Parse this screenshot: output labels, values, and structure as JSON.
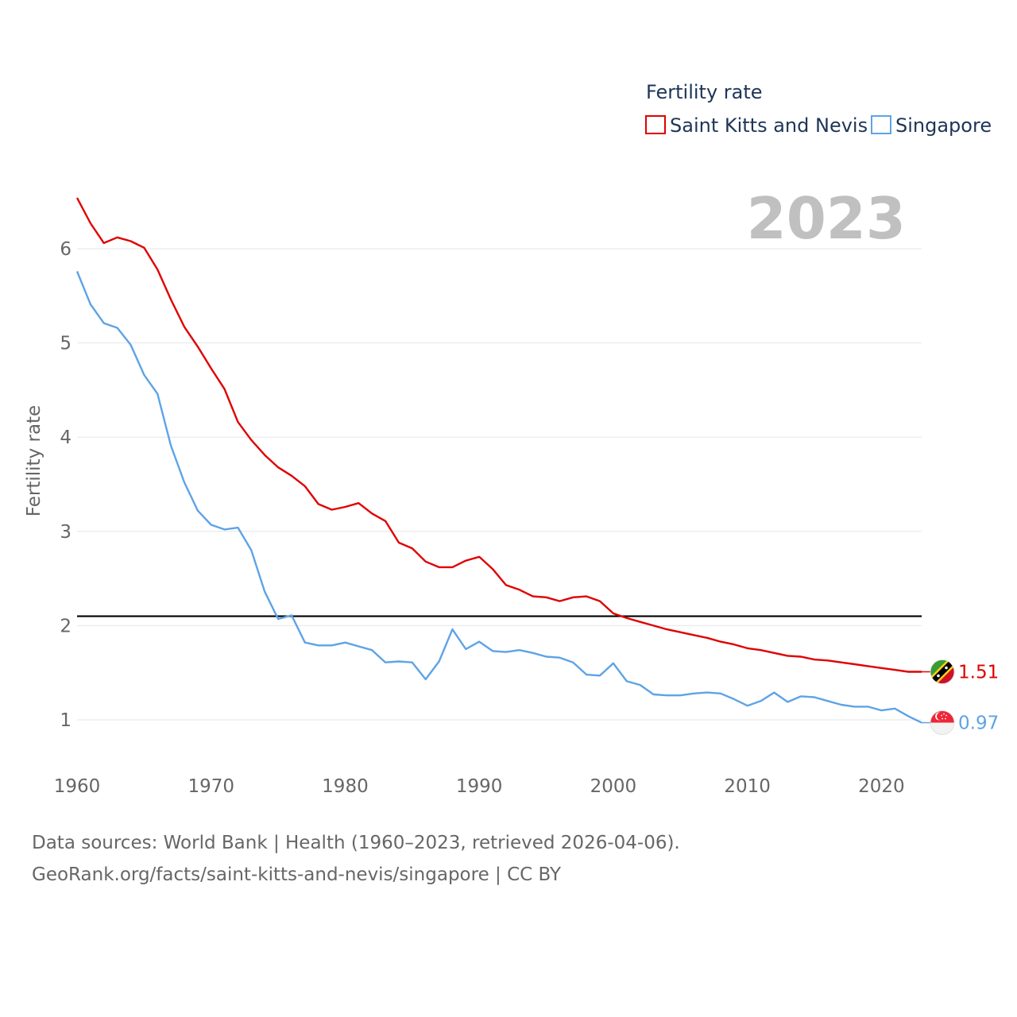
{
  "chart_data": {
    "type": "line",
    "ylabel": "Fertility rate",
    "legend_title": "Fertility rate",
    "year_label": "2023",
    "xlim": [
      1960,
      2023
    ],
    "ylim": [
      1,
      6
    ],
    "x_ticks": [
      1960,
      1970,
      1980,
      1990,
      2000,
      2010,
      2020
    ],
    "y_ticks": [
      1,
      2,
      3,
      4,
      5,
      6
    ],
    "grid": true,
    "legend_position": "top-right",
    "reference_line": {
      "value": 2.1,
      "color": "#000000"
    },
    "x": [
      1960,
      1961,
      1962,
      1963,
      1964,
      1965,
      1966,
      1967,
      1968,
      1969,
      1970,
      1971,
      1972,
      1973,
      1974,
      1975,
      1976,
      1977,
      1978,
      1979,
      1980,
      1981,
      1982,
      1983,
      1984,
      1985,
      1986,
      1987,
      1988,
      1989,
      1990,
      1991,
      1992,
      1993,
      1994,
      1995,
      1996,
      1997,
      1998,
      1999,
      2000,
      2001,
      2002,
      2003,
      2004,
      2005,
      2006,
      2007,
      2008,
      2009,
      2010,
      2011,
      2012,
      2013,
      2014,
      2015,
      2016,
      2017,
      2018,
      2019,
      2020,
      2021,
      2022,
      2023
    ],
    "series": [
      {
        "name": "Saint Kitts and Nevis",
        "color": "#e00000",
        "end_label": "1.51",
        "flag_icon": "saint-kitts-and-nevis-flag-icon",
        "values": [
          6.54,
          6.27,
          6.06,
          6.12,
          6.08,
          6.01,
          5.78,
          5.46,
          5.17,
          4.96,
          4.73,
          4.51,
          4.16,
          3.97,
          3.81,
          3.68,
          3.59,
          3.48,
          3.29,
          3.23,
          3.26,
          3.3,
          3.19,
          3.11,
          2.88,
          2.82,
          2.68,
          2.62,
          2.62,
          2.69,
          2.73,
          2.6,
          2.43,
          2.38,
          2.31,
          2.3,
          2.26,
          2.3,
          2.31,
          2.26,
          2.13,
          2.08,
          2.04,
          2.0,
          1.96,
          1.93,
          1.9,
          1.87,
          1.83,
          1.8,
          1.76,
          1.74,
          1.71,
          1.68,
          1.67,
          1.64,
          1.63,
          1.61,
          1.59,
          1.57,
          1.55,
          1.53,
          1.51,
          1.51
        ]
      },
      {
        "name": "Singapore",
        "color": "#5ea3e6",
        "end_label": "0.97",
        "flag_icon": "singapore-flag-icon",
        "values": [
          5.76,
          5.41,
          5.21,
          5.16,
          4.98,
          4.66,
          4.46,
          3.91,
          3.52,
          3.22,
          3.07,
          3.02,
          3.04,
          2.8,
          2.36,
          2.07,
          2.11,
          1.82,
          1.79,
          1.79,
          1.82,
          1.78,
          1.74,
          1.61,
          1.62,
          1.61,
          1.43,
          1.62,
          1.96,
          1.75,
          1.83,
          1.73,
          1.72,
          1.74,
          1.71,
          1.67,
          1.66,
          1.61,
          1.48,
          1.47,
          1.6,
          1.41,
          1.37,
          1.27,
          1.26,
          1.26,
          1.28,
          1.29,
          1.28,
          1.22,
          1.15,
          1.2,
          1.29,
          1.19,
          1.25,
          1.24,
          1.2,
          1.16,
          1.14,
          1.14,
          1.1,
          1.12,
          1.04,
          0.97
        ]
      }
    ]
  },
  "footer": {
    "source_text": "Data sources: World Bank | Health (1960–2023, retrieved 2026-04-06).",
    "url_text": "GeoRank.org/facts/saint-kitts-and-nevis/singapore | CC BY"
  }
}
